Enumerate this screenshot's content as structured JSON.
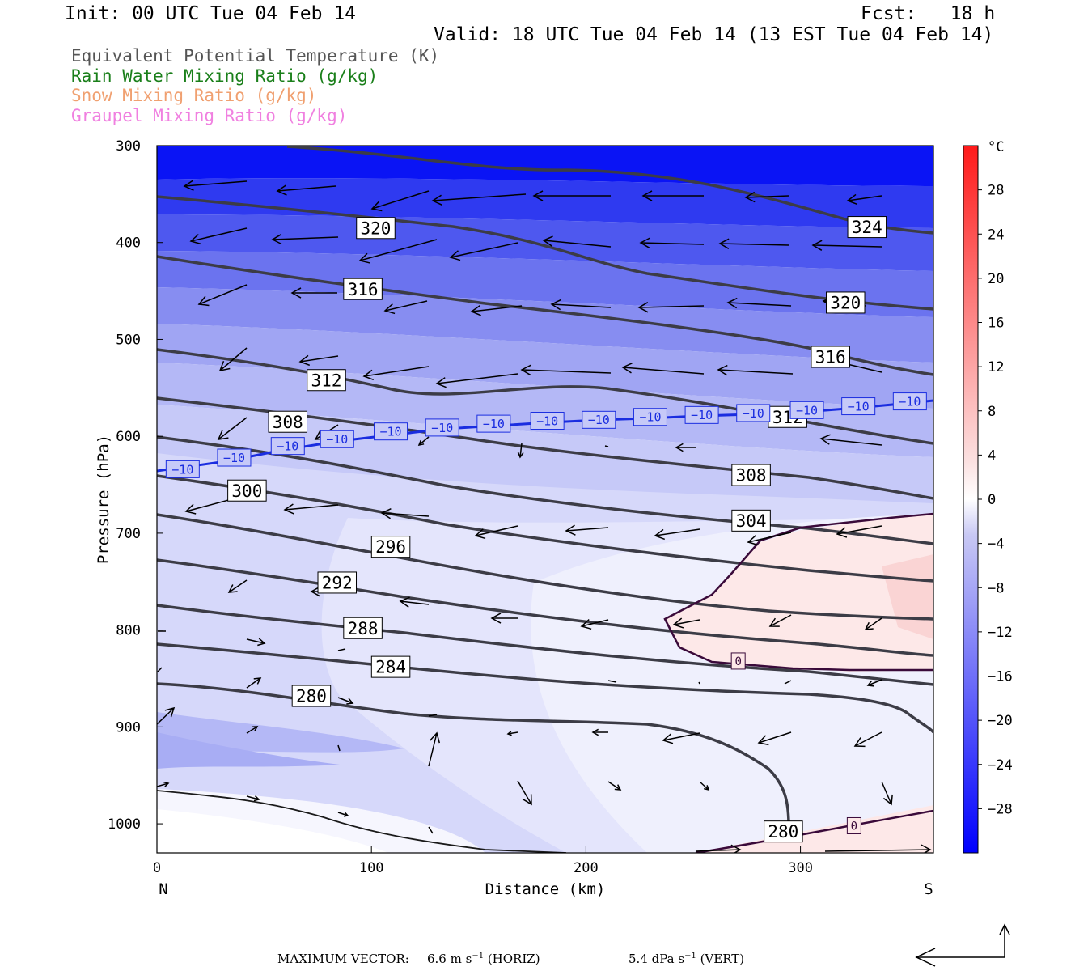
{
  "header": {
    "init": "Init: 00 UTC Tue 04 Feb 14",
    "fcst": "Fcst:   18 h",
    "valid": "Valid: 18 UTC Tue 04 Feb 14 (13 EST Tue 04 Feb 14)"
  },
  "legend": [
    {
      "label": "Equivalent Potential Temperature (K)",
      "color": "#555555"
    },
    {
      "label": "Rain Water Mixing Ratio (g/kg)",
      "color": "#1a7f1a"
    },
    {
      "label": "Snow Mixing Ratio (g/kg)",
      "color": "#f0a070"
    },
    {
      "label": "Graupel Mixing Ratio (g/kg)",
      "color": "#f080e0"
    }
  ],
  "chart_data": {
    "type": "cross-section",
    "xlabel": "Distance (km)",
    "ylabel": "Pressure (hPa)",
    "xlim": [
      0,
      362
    ],
    "ylim": [
      1030,
      300
    ],
    "x_ticks": [
      "0",
      "100",
      "200",
      "300"
    ],
    "y_ticks": [
      "300",
      "400",
      "500",
      "600",
      "700",
      "800",
      "900",
      "1000"
    ],
    "left_end": "N",
    "right_end": "S",
    "colorbar": {
      "unit": "°C",
      "labels": [
        "28",
        "24",
        "20",
        "16",
        "12",
        "8",
        "4",
        "0",
        "−4",
        "−8",
        "−12",
        "−16",
        "−20",
        "−24",
        "−28"
      ],
      "min": -32,
      "max": 32
    },
    "theta_e_labels": [
      {
        "text": "320",
        "x": 102,
        "p": 385
      },
      {
        "text": "324",
        "x": 331,
        "p": 384
      },
      {
        "text": "316",
        "x": 96,
        "p": 448
      },
      {
        "text": "320",
        "x": 321,
        "p": 462
      },
      {
        "text": "312",
        "x": 79,
        "p": 542
      },
      {
        "text": "316",
        "x": 314,
        "p": 518
      },
      {
        "text": "308",
        "x": 61,
        "p": 585
      },
      {
        "text": "312",
        "x": 294,
        "p": 580
      },
      {
        "text": "300",
        "x": 42,
        "p": 656
      },
      {
        "text": "308",
        "x": 277,
        "p": 640
      },
      {
        "text": "304",
        "x": 277,
        "p": 687
      },
      {
        "text": "296",
        "x": 109,
        "p": 714
      },
      {
        "text": "292",
        "x": 84,
        "p": 751
      },
      {
        "text": "288",
        "x": 96,
        "p": 798
      },
      {
        "text": "284",
        "x": 109,
        "p": 838
      },
      {
        "text": "280",
        "x": 72,
        "p": 868
      },
      {
        "text": "280",
        "x": 292,
        "p": 1008
      }
    ],
    "isotherm_labels": [
      {
        "text": "−10",
        "x": 12,
        "p": 634
      },
      {
        "text": "−10",
        "x": 36,
        "p": 622
      },
      {
        "text": "−10",
        "x": 61,
        "p": 610
      },
      {
        "text": "−10",
        "x": 84,
        "p": 603
      },
      {
        "text": "−10",
        "x": 109,
        "p": 595
      },
      {
        "text": "−10",
        "x": 133,
        "p": 591
      },
      {
        "text": "−10",
        "x": 157,
        "p": 587
      },
      {
        "text": "−10",
        "x": 182,
        "p": 584
      },
      {
        "text": "−10",
        "x": 206,
        "p": 583
      },
      {
        "text": "−10",
        "x": 230,
        "p": 580
      },
      {
        "text": "−10",
        "x": 254,
        "p": 578
      },
      {
        "text": "−10",
        "x": 278,
        "p": 576
      },
      {
        "text": "−10",
        "x": 303,
        "p": 573
      },
      {
        "text": "−10",
        "x": 327,
        "p": 569
      },
      {
        "text": "−10",
        "x": 351,
        "p": 564
      }
    ],
    "zero_labels": [
      {
        "text": "0",
        "x": 271,
        "p": 832
      },
      {
        "text": "0",
        "x": 325,
        "p": 1002
      }
    ]
  },
  "footer": {
    "max_vector_label": "MAXIMUM VECTOR:",
    "horiz_value": "6.6 m s",
    "horiz_exp": "−1",
    "horiz_unit": " (HORIZ)",
    "vert_value": "5.4 dPa s",
    "vert_exp": "−1",
    "vert_unit": " (VERT)"
  }
}
